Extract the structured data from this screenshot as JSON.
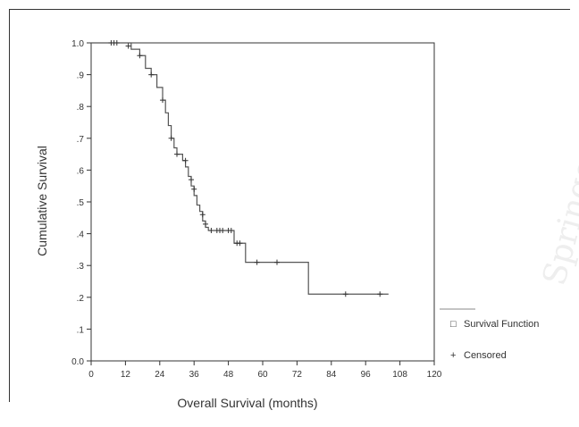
{
  "chart_data": {
    "type": "line",
    "xlabel": "Overall Survival (months)",
    "ylabel": "Cumulative Survival",
    "xlim": [
      0,
      120
    ],
    "ylim": [
      0,
      1
    ],
    "x_ticks": [
      "0",
      "12",
      "24",
      "36",
      "48",
      "60",
      "72",
      "84",
      "96",
      "108",
      "120"
    ],
    "y_ticks": [
      "0.0",
      ".1",
      ".2",
      ".3",
      ".4",
      ".5",
      ".6",
      ".7",
      ".8",
      ".9",
      "1.0"
    ],
    "grid": false,
    "legend_position": "right",
    "legend": [
      "Survival Function",
      "Censored"
    ],
    "series": [
      {
        "name": "Survival Function",
        "step": [
          [
            0,
            1.0
          ],
          [
            12,
            1.0
          ],
          [
            14,
            0.98
          ],
          [
            17,
            0.96
          ],
          [
            19,
            0.92
          ],
          [
            21,
            0.9
          ],
          [
            23,
            0.86
          ],
          [
            25,
            0.82
          ],
          [
            26,
            0.78
          ],
          [
            27,
            0.74
          ],
          [
            28,
            0.7
          ],
          [
            29,
            0.67
          ],
          [
            30,
            0.65
          ],
          [
            32,
            0.63
          ],
          [
            33,
            0.61
          ],
          [
            34,
            0.58
          ],
          [
            35,
            0.55
          ],
          [
            36,
            0.52
          ],
          [
            37,
            0.49
          ],
          [
            38,
            0.47
          ],
          [
            39,
            0.44
          ],
          [
            40,
            0.42
          ],
          [
            41,
            0.41
          ],
          [
            50,
            0.37
          ],
          [
            54,
            0.31
          ],
          [
            76,
            0.21
          ],
          [
            104,
            0.21
          ]
        ]
      },
      {
        "name": "Censored",
        "points": [
          [
            7,
            1.0
          ],
          [
            8,
            1.0
          ],
          [
            9,
            1.0
          ],
          [
            13,
            0.99
          ],
          [
            17,
            0.96
          ],
          [
            21,
            0.9
          ],
          [
            25,
            0.82
          ],
          [
            28,
            0.7
          ],
          [
            30,
            0.65
          ],
          [
            33,
            0.63
          ],
          [
            35,
            0.57
          ],
          [
            36,
            0.54
          ],
          [
            39,
            0.46
          ],
          [
            40,
            0.43
          ],
          [
            42,
            0.41
          ],
          [
            44,
            0.41
          ],
          [
            45,
            0.41
          ],
          [
            46,
            0.41
          ],
          [
            48,
            0.41
          ],
          [
            49,
            0.41
          ],
          [
            51,
            0.37
          ],
          [
            52,
            0.37
          ],
          [
            58,
            0.31
          ],
          [
            65,
            0.31
          ],
          [
            89,
            0.21
          ],
          [
            101,
            0.21
          ]
        ]
      }
    ]
  },
  "watermark": "Springer"
}
